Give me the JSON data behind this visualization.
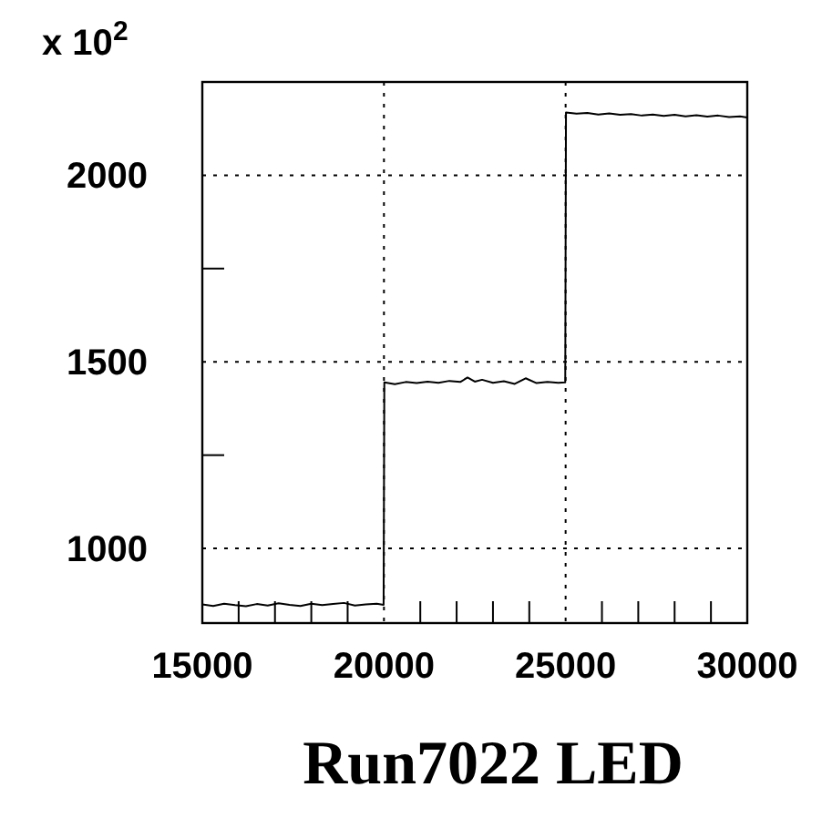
{
  "chart_data": {
    "type": "line",
    "title": "Run7022 LED",
    "ylabel": "x 10$^{2}$",
    "x": [
      15000,
      15300,
      15600,
      15900,
      16200,
      16500,
      16800,
      17100,
      17400,
      17700,
      18000,
      18300,
      18600,
      18900,
      19200,
      19500,
      19800,
      19990,
      20010,
      20300,
      20600,
      20900,
      21200,
      21500,
      21800,
      22100,
      22300,
      22500,
      22700,
      23000,
      23300,
      23600,
      23900,
      24200,
      24500,
      24800,
      24990,
      25010,
      25300,
      25600,
      25900,
      26200,
      26500,
      26800,
      27100,
      27400,
      27700,
      28000,
      28300,
      28600,
      28900,
      29200,
      29500,
      29800,
      30000
    ],
    "series": [
      {
        "color": "#000000",
        "values": [
          850,
          846,
          852,
          848,
          845,
          851,
          847,
          853,
          849,
          846,
          852,
          848,
          851,
          854,
          847,
          850,
          852,
          849,
          1445,
          1440,
          1446,
          1443,
          1447,
          1444,
          1449,
          1446,
          1458,
          1447,
          1452,
          1444,
          1448,
          1441,
          1456,
          1443,
          1446,
          1444,
          1445,
          2168,
          2165,
          2167,
          2163,
          2166,
          2162,
          2164,
          2160,
          2163,
          2159,
          2162,
          2158,
          2161,
          2157,
          2160,
          2156,
          2158,
          2155
        ]
      }
    ],
    "xlim": [
      15000,
      30000
    ],
    "ylim": [
      800,
      2250
    ],
    "xticks": [
      15000,
      20000,
      25000,
      30000
    ],
    "yticks": [
      1000,
      1500,
      2000
    ],
    "grid": true,
    "line_style": "solid",
    "marker": "none"
  }
}
